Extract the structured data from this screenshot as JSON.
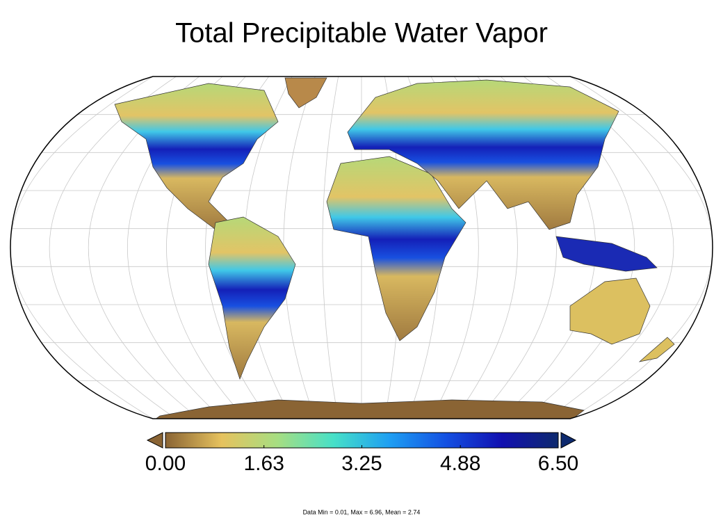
{
  "title": "Total Precipitable Water Vapor",
  "colorbar": {
    "ticks": [
      {
        "value": 0,
        "label": "0.00"
      },
      {
        "value": 1.63,
        "label": "1.63"
      },
      {
        "value": 3.25,
        "label": "3.25"
      },
      {
        "value": 4.88,
        "label": "4.88"
      },
      {
        "value": 6.5,
        "label": "6.50"
      }
    ],
    "colors": [
      "#8a6434",
      "#e6c25e",
      "#a6de82",
      "#46e0c8",
      "#1e9ef2",
      "#1450e2",
      "#1210b0",
      "#0e2a6e"
    ]
  },
  "footnote": "Data Min = 0.01, Max = 6.96, Mean = 2.74"
}
